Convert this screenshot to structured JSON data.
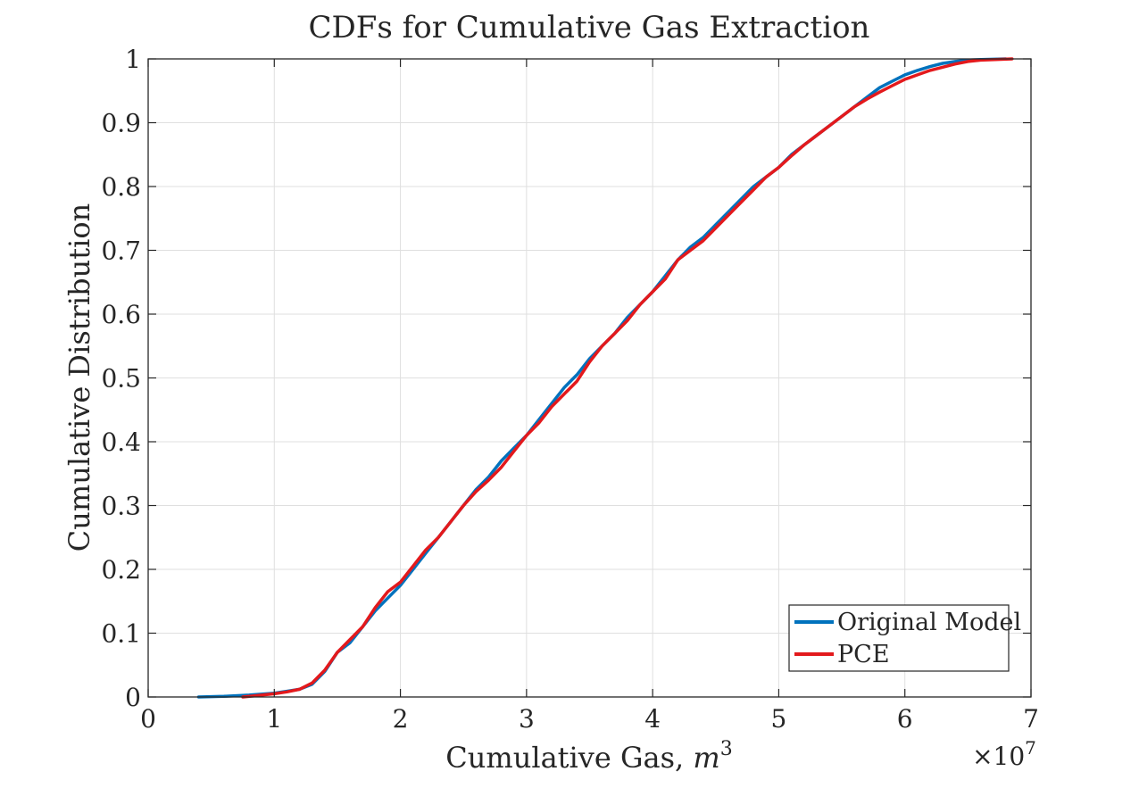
{
  "chart_data": {
    "type": "line",
    "title": "CDFs for Cumulative Gas Extraction",
    "xlabel_text": "Cumulative Gas, ",
    "xlabel_var": "m",
    "xlabel_exp": "3",
    "ylabel": "Cumulative Distribution",
    "x_multiplier_base": "×10",
    "x_multiplier_exp": "7",
    "xlim": [
      0,
      7
    ],
    "ylim": [
      0,
      1
    ],
    "x_ticks": [
      "0",
      "1",
      "2",
      "3",
      "4",
      "5",
      "6",
      "7"
    ],
    "y_ticks": [
      "0",
      "0.1",
      "0.2",
      "0.3",
      "0.4",
      "0.5",
      "0.6",
      "0.7",
      "0.8",
      "0.9",
      "1"
    ],
    "grid": true,
    "legend_position": "bottom-right",
    "series": [
      {
        "name": "Original Model",
        "color": "#0072BD",
        "points": [
          [
            0.4,
            0
          ],
          [
            0.6,
            0.001
          ],
          [
            0.8,
            0.003
          ],
          [
            1.0,
            0.006
          ],
          [
            1.1,
            0.009
          ],
          [
            1.2,
            0.012
          ],
          [
            1.3,
            0.02
          ],
          [
            1.4,
            0.04
          ],
          [
            1.5,
            0.07
          ],
          [
            1.6,
            0.085
          ],
          [
            1.7,
            0.11
          ],
          [
            1.8,
            0.135
          ],
          [
            1.9,
            0.155
          ],
          [
            2.0,
            0.175
          ],
          [
            2.1,
            0.2
          ],
          [
            2.2,
            0.225
          ],
          [
            2.3,
            0.25
          ],
          [
            2.4,
            0.275
          ],
          [
            2.5,
            0.3
          ],
          [
            2.6,
            0.325
          ],
          [
            2.7,
            0.345
          ],
          [
            2.8,
            0.37
          ],
          [
            2.9,
            0.39
          ],
          [
            3.0,
            0.41
          ],
          [
            3.1,
            0.435
          ],
          [
            3.2,
            0.46
          ],
          [
            3.3,
            0.485
          ],
          [
            3.4,
            0.505
          ],
          [
            3.5,
            0.53
          ],
          [
            3.6,
            0.55
          ],
          [
            3.7,
            0.57
          ],
          [
            3.8,
            0.595
          ],
          [
            3.9,
            0.615
          ],
          [
            4.0,
            0.635
          ],
          [
            4.1,
            0.66
          ],
          [
            4.2,
            0.685
          ],
          [
            4.3,
            0.705
          ],
          [
            4.4,
            0.72
          ],
          [
            4.5,
            0.74
          ],
          [
            4.6,
            0.76
          ],
          [
            4.7,
            0.78
          ],
          [
            4.8,
            0.8
          ],
          [
            4.9,
            0.815
          ],
          [
            5.0,
            0.83
          ],
          [
            5.1,
            0.85
          ],
          [
            5.2,
            0.865
          ],
          [
            5.3,
            0.88
          ],
          [
            5.4,
            0.895
          ],
          [
            5.5,
            0.91
          ],
          [
            5.6,
            0.925
          ],
          [
            5.7,
            0.94
          ],
          [
            5.8,
            0.955
          ],
          [
            5.9,
            0.965
          ],
          [
            6.0,
            0.975
          ],
          [
            6.1,
            0.982
          ],
          [
            6.2,
            0.988
          ],
          [
            6.3,
            0.993
          ],
          [
            6.4,
            0.996
          ],
          [
            6.5,
            0.998
          ],
          [
            6.6,
            0.999
          ],
          [
            6.8,
            1.0
          ]
        ]
      },
      {
        "name": "PCE",
        "color": "#E3191C",
        "points": [
          [
            0.75,
            0
          ],
          [
            0.85,
            0.002
          ],
          [
            1.0,
            0.005
          ],
          [
            1.1,
            0.008
          ],
          [
            1.2,
            0.012
          ],
          [
            1.3,
            0.022
          ],
          [
            1.4,
            0.042
          ],
          [
            1.5,
            0.07
          ],
          [
            1.6,
            0.09
          ],
          [
            1.7,
            0.11
          ],
          [
            1.8,
            0.14
          ],
          [
            1.9,
            0.165
          ],
          [
            2.0,
            0.18
          ],
          [
            2.1,
            0.205
          ],
          [
            2.2,
            0.23
          ],
          [
            2.3,
            0.25
          ],
          [
            2.4,
            0.275
          ],
          [
            2.5,
            0.3
          ],
          [
            2.6,
            0.322
          ],
          [
            2.7,
            0.34
          ],
          [
            2.8,
            0.36
          ],
          [
            2.9,
            0.385
          ],
          [
            3.0,
            0.41
          ],
          [
            3.1,
            0.43
          ],
          [
            3.2,
            0.455
          ],
          [
            3.3,
            0.475
          ],
          [
            3.4,
            0.495
          ],
          [
            3.5,
            0.525
          ],
          [
            3.6,
            0.55
          ],
          [
            3.7,
            0.57
          ],
          [
            3.8,
            0.59
          ],
          [
            3.9,
            0.615
          ],
          [
            4.0,
            0.635
          ],
          [
            4.1,
            0.655
          ],
          [
            4.2,
            0.685
          ],
          [
            4.3,
            0.7
          ],
          [
            4.4,
            0.715
          ],
          [
            4.5,
            0.735
          ],
          [
            4.6,
            0.755
          ],
          [
            4.7,
            0.775
          ],
          [
            4.8,
            0.795
          ],
          [
            4.9,
            0.815
          ],
          [
            5.0,
            0.83
          ],
          [
            5.1,
            0.848
          ],
          [
            5.2,
            0.865
          ],
          [
            5.3,
            0.88
          ],
          [
            5.4,
            0.895
          ],
          [
            5.5,
            0.91
          ],
          [
            5.6,
            0.925
          ],
          [
            5.7,
            0.937
          ],
          [
            5.8,
            0.948
          ],
          [
            5.9,
            0.958
          ],
          [
            6.0,
            0.968
          ],
          [
            6.1,
            0.975
          ],
          [
            6.2,
            0.982
          ],
          [
            6.3,
            0.987
          ],
          [
            6.4,
            0.992
          ],
          [
            6.5,
            0.996
          ],
          [
            6.6,
            0.998
          ],
          [
            6.85,
            1.0
          ]
        ]
      }
    ]
  }
}
